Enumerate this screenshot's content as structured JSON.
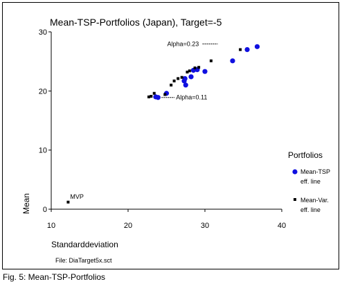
{
  "chart_data": {
    "type": "scatter",
    "title": "Mean-TSP-Portfolios (Japan), Target=-5",
    "xlabel": "Standarddeviation",
    "ylabel": "Mean",
    "xlim": [
      10,
      40
    ],
    "ylim": [
      0,
      30
    ],
    "xticks": [
      "10",
      "20",
      "30",
      "40"
    ],
    "yticks": [
      "0",
      "10",
      "20",
      "30"
    ],
    "grid": false,
    "file_note": "File: DiaTarget5x.sct",
    "legend": {
      "title": "Portfolios",
      "position": "right",
      "entries": [
        {
          "line1": "Mean-TSP",
          "line2": "eff. line"
        },
        {
          "line1": "Mean-Var.",
          "line2": "eff. line"
        }
      ]
    },
    "series": [
      {
        "name": "Mean-TSP eff. line",
        "color": "#1010e0",
        "marker": "circle",
        "points": [
          [
            23.6,
            19.0
          ],
          [
            23.9,
            18.9
          ],
          [
            25.0,
            19.6
          ],
          [
            27.3,
            21.7
          ],
          [
            27.5,
            21.0
          ],
          [
            27.4,
            22.1
          ],
          [
            28.2,
            22.4
          ],
          [
            28.5,
            23.5
          ],
          [
            29.0,
            23.6
          ],
          [
            30.0,
            23.3
          ],
          [
            33.6,
            25.1
          ],
          [
            35.5,
            27.0
          ],
          [
            36.8,
            27.5
          ]
        ]
      },
      {
        "name": "Mean-Var. eff. line",
        "color": "#000000",
        "marker": "square",
        "points": [
          [
            12.2,
            1.2
          ],
          [
            22.7,
            19.0
          ],
          [
            23.0,
            19.1
          ],
          [
            23.4,
            19.6
          ],
          [
            24.8,
            19.4
          ],
          [
            25.6,
            21.0
          ],
          [
            26.0,
            21.7
          ],
          [
            26.5,
            22.1
          ],
          [
            27.0,
            22.3
          ],
          [
            27.7,
            23.2
          ],
          [
            28.0,
            23.4
          ],
          [
            28.7,
            23.9
          ],
          [
            29.2,
            24.0
          ],
          [
            30.8,
            25.1
          ],
          [
            34.6,
            27.0
          ]
        ]
      }
    ],
    "annotations": [
      {
        "text": "MVP",
        "x": 12.2,
        "y": 1.2
      },
      {
        "text": "Alpha=0.11",
        "x": 23.9,
        "y": 18.9
      },
      {
        "text": "Alpha=0.23",
        "x": 36.8,
        "y": 27.5
      }
    ]
  },
  "caption": "Fig. 5: Mean-TSP-Portfolios"
}
